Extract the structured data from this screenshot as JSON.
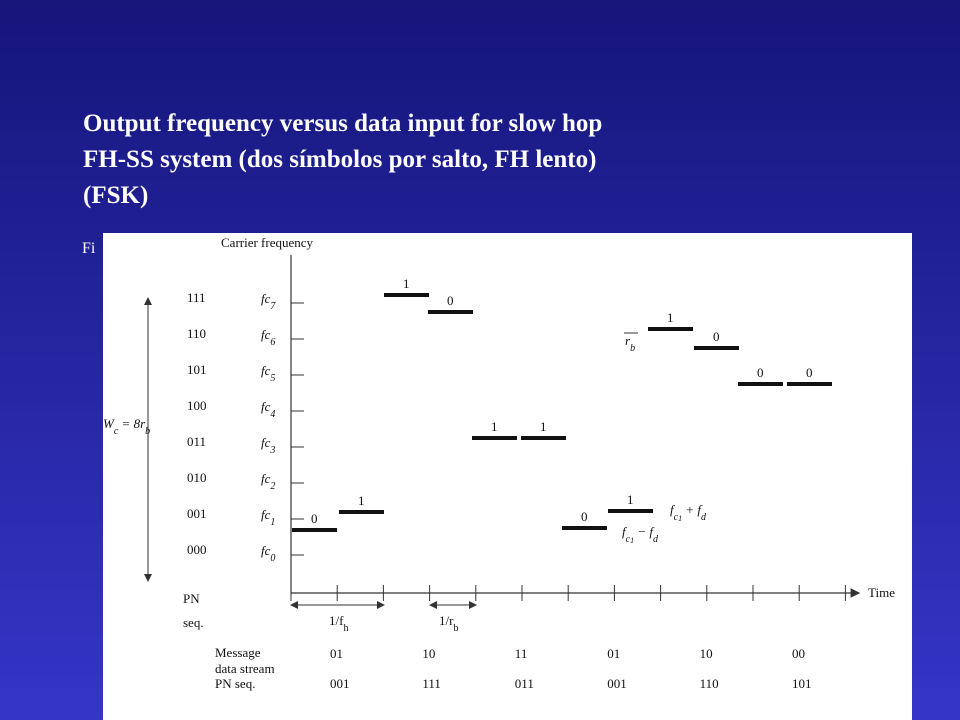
{
  "slide": {
    "title": [
      "Output frequency versus data input for slow hop",
      "FH-SS system (dos símbolos por salto, FH lento)",
      "(FSK)"
    ],
    "caption": "Fi"
  },
  "figure": {
    "y_axis_label": "Carrier frequency",
    "x_axis_label": "Time",
    "levels": [
      {
        "code": "111",
        "base": "fc",
        "sub": "7"
      },
      {
        "code": "110",
        "base": "fc",
        "sub": "6"
      },
      {
        "code": "101",
        "base": "fc",
        "sub": "5"
      },
      {
        "code": "100",
        "base": "fc",
        "sub": "4"
      },
      {
        "code": "011",
        "base": "fc",
        "sub": "3"
      },
      {
        "code": "010",
        "base": "fc",
        "sub": "2"
      },
      {
        "code": "001",
        "base": "fc",
        "sub": "1"
      },
      {
        "code": "000",
        "base": "fc",
        "sub": "0"
      }
    ],
    "bandwidth": {
      "w": "W",
      "w_sub": "c",
      "eq": " = 8r",
      "eq_sub": "b"
    },
    "bits": [
      "0",
      "1",
      "1",
      "0",
      "1",
      "1",
      "0",
      "1",
      "1",
      "0",
      "0",
      "0"
    ],
    "plus_label": {
      "base": "f",
      "sub": "c",
      "subsub": "1",
      "rest": " + f",
      "rest_sub": "d"
    },
    "minus_label": {
      "base": "f",
      "sub": "c",
      "subsub": "1",
      "rest": " − f",
      "rest_sub": "d"
    },
    "rb_label": {
      "base": "r",
      "sub": "b"
    },
    "pn_label": [
      "PN",
      "seq."
    ],
    "hop_label": {
      "base": "1/f",
      "sub": "h"
    },
    "bit_label": {
      "base": "1/r",
      "sub": "b"
    },
    "table": {
      "row_labels": [
        "Message",
        "data stream",
        "PN seq."
      ],
      "message": [
        "01",
        "10",
        "11",
        "01",
        "10",
        "00"
      ],
      "pn": [
        "001",
        "111",
        "011",
        "001",
        "110",
        "101"
      ]
    }
  }
}
